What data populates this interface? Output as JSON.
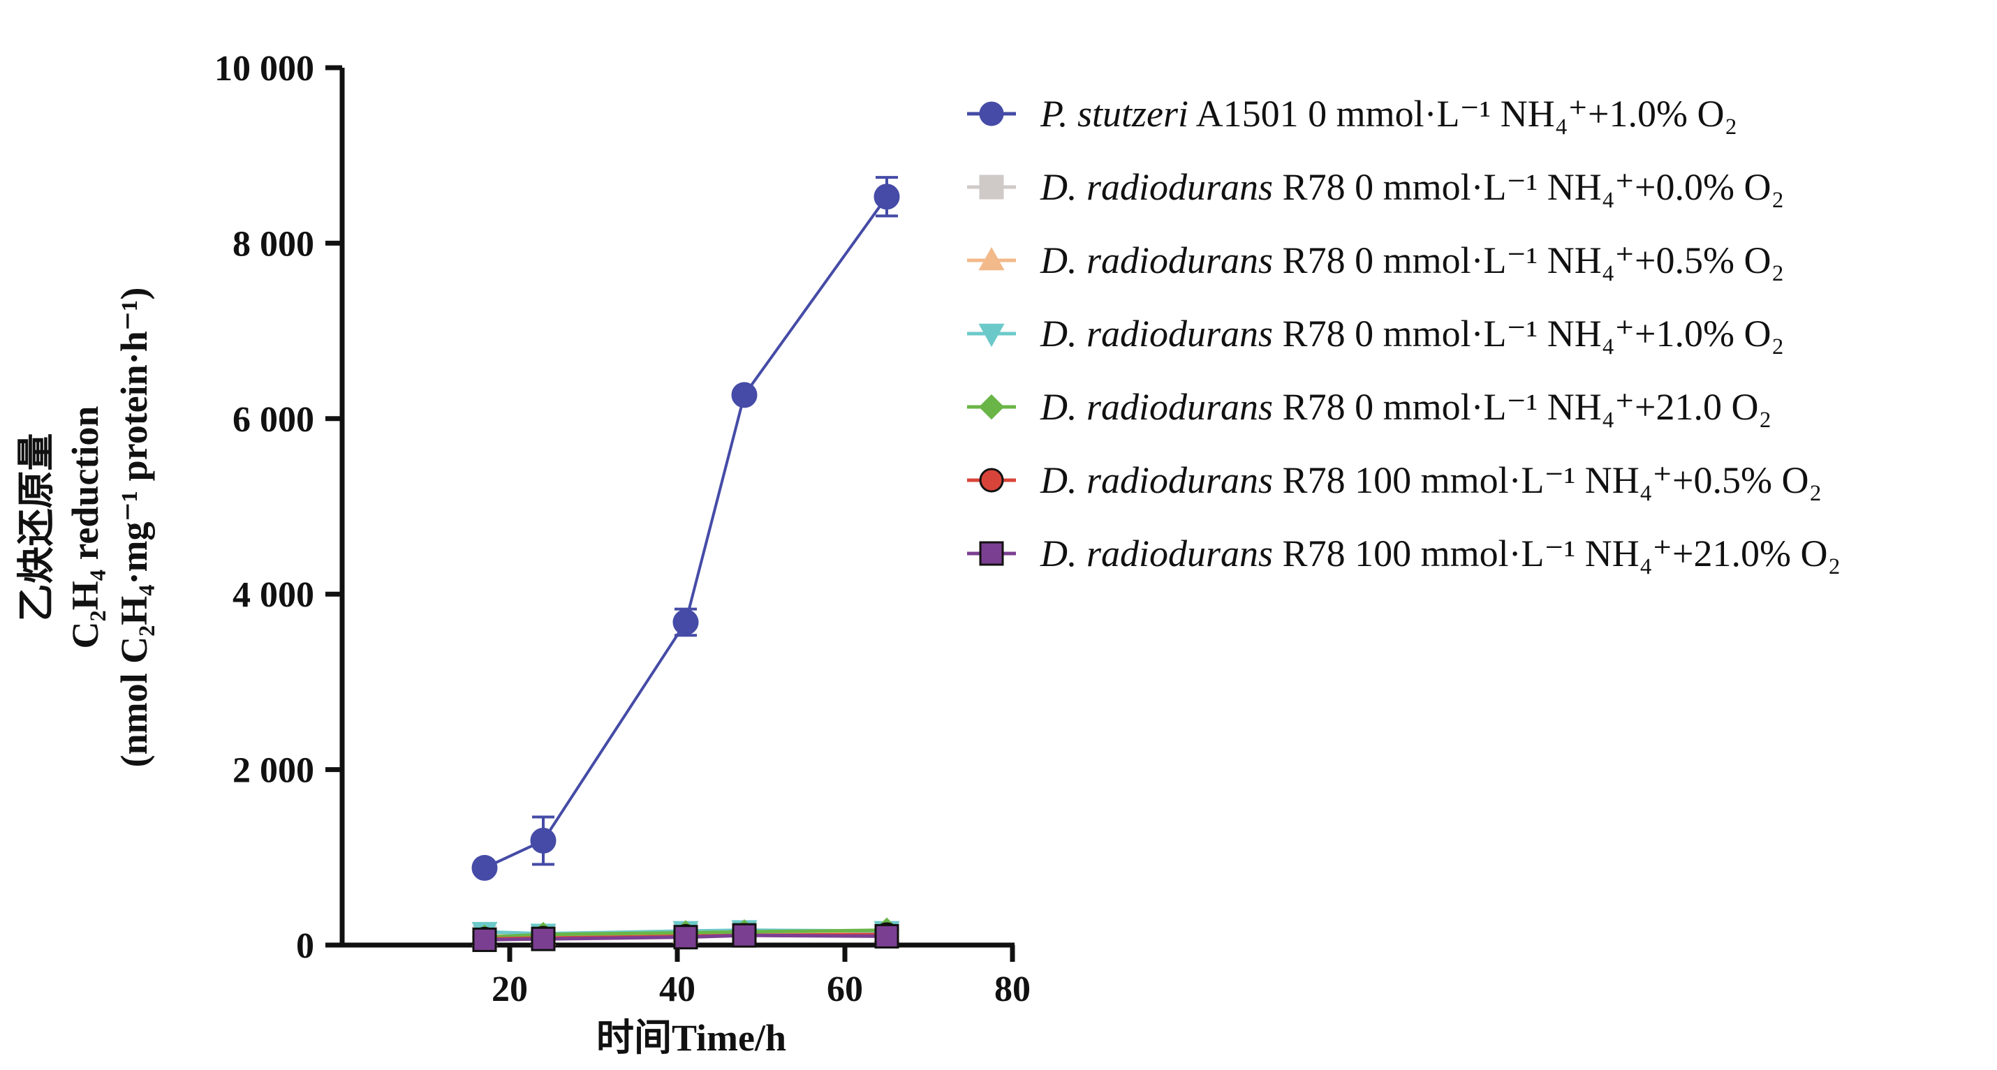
{
  "chart_data": {
    "type": "line",
    "title": "",
    "xlabel": "时间Time/h",
    "ylabel_lines": [
      "乙炔还原量",
      "C₂H₄ reduction",
      "(nmol C₂H₄·mg⁻¹ protein·h⁻¹)"
    ],
    "xlim": [
      0,
      80
    ],
    "ylim": [
      0,
      10000
    ],
    "x_ticks": [
      20,
      40,
      60,
      80
    ],
    "x_tick_labels": [
      "20",
      "40",
      "60",
      "80"
    ],
    "y_ticks": [
      0,
      2000,
      4000,
      6000,
      8000,
      10000
    ],
    "y_tick_labels": [
      "0",
      "2 000",
      "4 000",
      "6 000",
      "8 000",
      "10 000"
    ],
    "grid": false,
    "legend_position": "right",
    "series": [
      {
        "organism": "P. stutzeri",
        "rest": " A1501 0 mmol·L⁻¹ NH₄⁺+1.0% O₂",
        "marker": "circle",
        "color": "#454ba6",
        "x": [
          17,
          24,
          41,
          48,
          65
        ],
        "y": [
          880,
          1190,
          3680,
          6270,
          8530
        ],
        "err": [
          0,
          270,
          150,
          0,
          220
        ]
      },
      {
        "organism": "D. radiodurans",
        "rest": " R78 0 mmol·L⁻¹ NH₄⁺+0.0% O₂",
        "marker": "square",
        "color": "#cfcac7",
        "x": [
          17,
          24,
          41,
          48,
          65
        ],
        "y": [
          80,
          90,
          110,
          120,
          130
        ],
        "err": [
          0,
          0,
          0,
          0,
          0
        ]
      },
      {
        "organism": "D. radiodurans",
        "rest": " R78 0 mmol·L⁻¹ NH₄⁺+0.5% O₂",
        "marker": "triangle-up",
        "color": "#f2b98a",
        "x": [
          17,
          24,
          41,
          48,
          65
        ],
        "y": [
          100,
          110,
          130,
          140,
          150
        ],
        "err": [
          0,
          0,
          0,
          0,
          0
        ]
      },
      {
        "organism": "D. radiodurans",
        "rest": " R78 0 mmol·L⁻¹ NH₄⁺+1.0% O₂",
        "marker": "triangle-down",
        "color": "#6cc9c9",
        "x": [
          17,
          24,
          41,
          48,
          65
        ],
        "y": [
          150,
          130,
          160,
          170,
          160
        ],
        "err": [
          0,
          0,
          0,
          0,
          0
        ]
      },
      {
        "organism": "D. radiodurans",
        "rest": " R78 0 mmol·L⁻¹ NH₄⁺+21.0 O₂",
        "marker": "diamond",
        "color": "#6ab547",
        "x": [
          17,
          24,
          41,
          48,
          65
        ],
        "y": [
          90,
          120,
          140,
          150,
          170
        ],
        "err": [
          0,
          0,
          0,
          0,
          0
        ]
      },
      {
        "organism": "D. radiodurans",
        "rest": " R78 100 mmol·L⁻¹ NH₄⁺+0.5% O₂",
        "marker": "circle",
        "color": "#d9443a",
        "x": [
          17,
          24,
          41,
          48,
          65
        ],
        "y": [
          70,
          80,
          100,
          110,
          120
        ],
        "err": [
          0,
          0,
          0,
          0,
          0
        ]
      },
      {
        "organism": "D. radiodurans",
        "rest": " R78 100 mmol·L⁻¹ NH₄⁺+21.0% O₂",
        "marker": "square",
        "color": "#7b3f91",
        "x": [
          17,
          24,
          41,
          48,
          65
        ],
        "y": [
          60,
          70,
          90,
          110,
          100
        ],
        "err": [
          0,
          0,
          0,
          0,
          0
        ]
      }
    ]
  }
}
